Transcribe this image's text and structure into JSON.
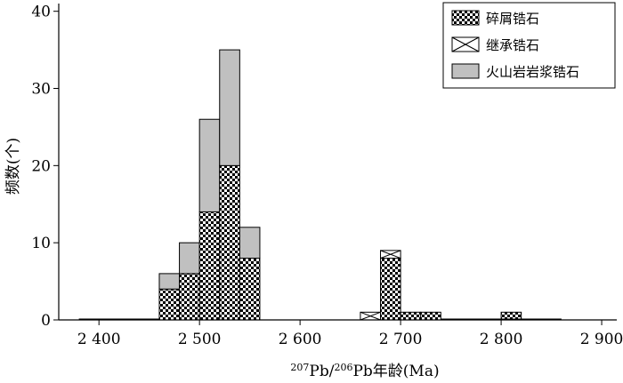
{
  "chart_data": {
    "type": "bar",
    "stacked": true,
    "grid": false,
    "legend_position": "top-right",
    "xlabel": {
      "parts": [
        {
          "text": "207",
          "sup": true
        },
        {
          "text": "Pb/",
          "sup": false
        },
        {
          "text": "206",
          "sup": true
        },
        {
          "text": "Pb年龄(Ma)",
          "sup": false
        }
      ]
    },
    "ylabel": "频数(个)",
    "xlim": [
      2360,
      2915
    ],
    "ylim": [
      0,
      41
    ],
    "bin_width": 20,
    "x_ticks": [
      {
        "value": 2400,
        "label": "2 400"
      },
      {
        "value": 2500,
        "label": "2 500"
      },
      {
        "value": 2600,
        "label": "2 600"
      },
      {
        "value": 2700,
        "label": "2 700"
      },
      {
        "value": 2800,
        "label": "2 800"
      },
      {
        "value": 2900,
        "label": "2 900"
      }
    ],
    "y_ticks": [
      {
        "value": 0,
        "label": "0"
      },
      {
        "value": 10,
        "label": "10"
      },
      {
        "value": 20,
        "label": "20"
      },
      {
        "value": 30,
        "label": "30"
      },
      {
        "value": 40,
        "label": "40"
      }
    ],
    "bin_starts": [
      2460,
      2480,
      2500,
      2520,
      2540,
      2660,
      2680,
      2700,
      2720,
      2800
    ],
    "series": [
      {
        "name": "碎屑锆石",
        "pattern": "checker",
        "values": [
          4,
          6,
          14,
          20,
          8,
          0,
          8,
          1,
          1,
          1
        ]
      },
      {
        "name": "继承锆石",
        "pattern": "cross",
        "values": [
          0,
          0,
          0,
          0,
          0,
          1,
          1,
          0,
          0,
          0
        ]
      },
      {
        "name": "火山岩岩浆锆石",
        "pattern": "solid",
        "values": [
          2,
          4,
          12,
          15,
          4,
          0,
          0,
          0,
          0,
          0
        ]
      }
    ],
    "colors": {
      "solid_fill": "#c0c0c0",
      "checker_dark": "#000000",
      "checker_light": "#ffffff"
    }
  }
}
